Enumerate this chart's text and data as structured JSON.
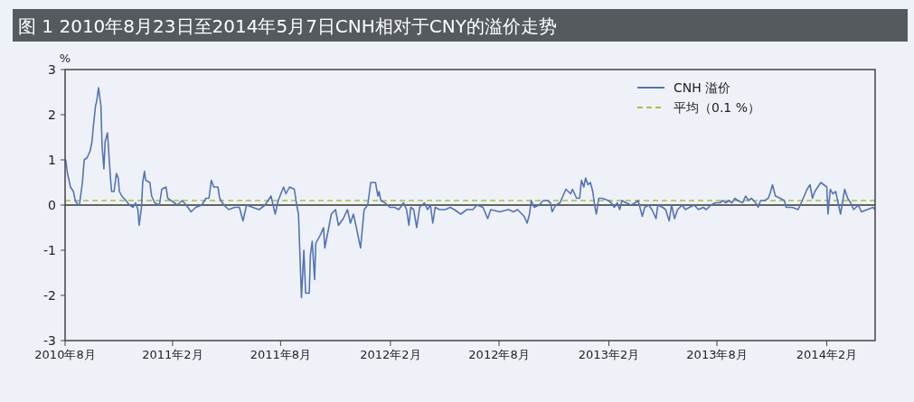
{
  "chart_data": {
    "type": "line",
    "title": "图 1 2010年8月23日至2014年5月7日CNH相对于CNY的溢价走势",
    "ylabel": "%",
    "xlim": [
      "2010-08-05",
      "2014-04-23"
    ],
    "xticks": [
      {
        "value": "2010-08-05",
        "label": "2010年8月"
      },
      {
        "value": "2011-02-01",
        "label": "2011年2月"
      },
      {
        "value": "2011-08-01",
        "label": "2011年8月"
      },
      {
        "value": "2012-02-01",
        "label": "2012年2月"
      },
      {
        "value": "2012-08-01",
        "label": "2012年8月"
      },
      {
        "value": "2013-02-01",
        "label": "2013年2月"
      },
      {
        "value": "2013-08-01",
        "label": "2013年8月"
      },
      {
        "value": "2014-02-01",
        "label": "2014年2月"
      }
    ],
    "ylim": [
      -3,
      3
    ],
    "yticks": [
      -3,
      -2,
      -1,
      0,
      1,
      2,
      3
    ],
    "grid": false,
    "legend": "top right",
    "line_style": "solid",
    "marker": "none",
    "ref_lines": [
      {
        "axis": "y",
        "value": 0.1,
        "label": "平均（0.1 %）",
        "color": "#a8c040",
        "line_style": "dashed"
      },
      {
        "axis": "y",
        "value": 0,
        "color": "#333333",
        "line_style": "solid"
      }
    ],
    "series": [
      {
        "name": "CNH 溢价",
        "color": "#5573b5",
        "x": [
          "2010-08-06",
          "2010-08-09",
          "2010-08-14",
          "2010-08-19",
          "2010-08-22",
          "2010-08-27",
          "2010-08-29",
          "2010-09-03",
          "2010-09-06",
          "2010-09-11",
          "2010-09-16",
          "2010-09-19",
          "2010-09-21",
          "2010-09-25",
          "2010-09-27",
          "2010-09-30",
          "2010-10-04",
          "2010-10-06",
          "2010-10-09",
          "2010-10-11",
          "2010-10-15",
          "2010-10-17",
          "2010-10-20",
          "2010-10-22",
          "2010-10-26",
          "2010-10-30",
          "2010-11-02",
          "2010-11-04",
          "2010-11-08",
          "2010-11-15",
          "2010-11-21",
          "2010-11-27",
          "2010-12-01",
          "2010-12-05",
          "2010-12-07",
          "2010-12-11",
          "2010-12-13",
          "2010-12-16",
          "2010-12-18",
          "2010-12-25",
          "2010-12-28",
          "2011-01-02",
          "2011-01-10",
          "2011-01-14",
          "2011-01-21",
          "2011-01-24",
          "2011-02-04",
          "2011-02-09",
          "2011-02-17",
          "2011-02-24",
          "2011-03-04",
          "2011-03-12",
          "2011-03-22",
          "2011-03-29",
          "2011-04-03",
          "2011-04-07",
          "2011-04-11",
          "2011-04-18",
          "2011-04-21",
          "2011-04-28",
          "2011-05-06",
          "2011-05-16",
          "2011-05-24",
          "2011-05-30",
          "2011-06-05",
          "2011-06-15",
          "2011-06-26",
          "2011-07-06",
          "2011-07-16",
          "2011-07-23",
          "2011-07-28",
          "2011-08-06",
          "2011-08-10",
          "2011-08-16",
          "2011-08-24",
          "2011-08-28",
          "2011-08-31",
          "2011-09-05",
          "2011-09-09",
          "2011-09-12",
          "2011-09-18",
          "2011-09-20",
          "2011-09-23",
          "2011-09-27",
          "2011-09-29",
          "2011-10-07",
          "2011-10-12",
          "2011-10-14",
          "2011-10-20",
          "2011-10-25",
          "2011-11-01",
          "2011-11-06",
          "2011-11-14",
          "2011-11-21",
          "2011-11-26",
          "2011-12-01",
          "2011-12-06",
          "2011-12-13",
          "2011-12-19",
          "2011-12-25",
          "2011-12-30",
          "2012-01-07",
          "2012-01-11",
          "2012-01-13",
          "2012-01-16",
          "2012-01-23",
          "2012-01-31",
          "2012-02-08",
          "2012-02-15",
          "2012-02-23",
          "2012-02-28",
          "2012-03-03",
          "2012-03-06",
          "2012-03-11",
          "2012-03-16",
          "2012-03-21",
          "2012-03-29",
          "2012-04-03",
          "2012-04-08",
          "2012-04-12",
          "2012-04-16",
          "2012-04-23",
          "2012-05-03",
          "2012-05-11",
          "2012-05-18",
          "2012-05-29",
          "2012-06-08",
          "2012-06-18",
          "2012-06-25",
          "2012-07-05",
          "2012-07-13",
          "2012-07-18",
          "2012-08-02",
          "2012-08-17",
          "2012-08-25",
          "2012-09-01",
          "2012-09-12",
          "2012-09-17",
          "2012-09-21",
          "2012-09-24",
          "2012-09-29",
          "2012-10-07",
          "2012-10-14",
          "2012-10-21",
          "2012-10-26",
          "2012-10-29",
          "2012-11-04",
          "2012-11-11",
          "2012-11-16",
          "2012-11-21",
          "2012-11-25",
          "2012-11-29",
          "2012-12-02",
          "2012-12-09",
          "2012-12-14",
          "2012-12-17",
          "2012-12-21",
          "2012-12-24",
          "2012-12-28",
          "2013-01-01",
          "2013-01-05",
          "2013-01-08",
          "2013-01-11",
          "2013-01-15",
          "2013-01-21",
          "2013-01-31",
          "2013-02-05",
          "2013-02-10",
          "2013-02-15",
          "2013-02-19",
          "2013-02-23",
          "2013-03-02",
          "2013-03-10",
          "2013-03-17",
          "2013-03-22",
          "2013-03-29",
          "2013-04-02",
          "2013-04-09",
          "2013-04-14",
          "2013-04-21",
          "2013-04-24",
          "2013-05-02",
          "2013-05-07",
          "2013-05-13",
          "2013-05-17",
          "2013-05-22",
          "2013-05-27",
          "2013-06-04",
          "2013-06-09",
          "2013-06-16",
          "2013-06-24",
          "2013-07-01",
          "2013-07-09",
          "2013-07-14",
          "2013-07-22",
          "2013-07-29",
          "2013-08-06",
          "2013-08-11",
          "2013-08-16",
          "2013-08-21",
          "2013-08-26",
          "2013-08-31",
          "2013-09-05",
          "2013-09-13",
          "2013-09-18",
          "2013-09-23",
          "2013-09-28",
          "2013-10-05",
          "2013-10-09",
          "2013-10-13",
          "2013-10-20",
          "2013-10-26",
          "2013-10-30",
          "2013-11-02",
          "2013-11-07",
          "2013-11-15",
          "2013-11-22",
          "2013-11-25",
          "2013-12-05",
          "2013-12-15",
          "2013-12-22",
          "2013-12-30",
          "2014-01-04",
          "2014-01-08",
          "2014-01-12",
          "2014-01-17",
          "2014-01-22",
          "2014-01-27",
          "2014-02-01",
          "2014-02-03",
          "2014-02-07",
          "2014-02-11",
          "2014-02-16",
          "2014-02-20",
          "2014-02-24",
          "2014-03-03",
          "2014-03-08",
          "2014-03-13",
          "2014-03-18",
          "2014-03-26",
          "2014-03-31",
          "2014-04-10",
          "2014-04-20",
          "2014-04-22"
        ],
        "values": [
          1.0,
          0.7,
          0.4,
          0.3,
          0.1,
          0.0,
          0.0,
          0.5,
          1.0,
          1.05,
          1.2,
          1.4,
          1.7,
          2.2,
          2.3,
          2.6,
          2.2,
          1.3,
          0.8,
          1.4,
          1.6,
          1.2,
          0.6,
          0.3,
          0.3,
          0.7,
          0.6,
          0.3,
          0.2,
          0.1,
          0.0,
          -0.05,
          0.05,
          -0.1,
          -0.45,
          -0.05,
          0.5,
          0.75,
          0.55,
          0.5,
          0.2,
          0.05,
          0.0,
          0.35,
          0.4,
          0.15,
          0.05,
          0.0,
          0.1,
          0.0,
          -0.15,
          -0.05,
          0.0,
          0.15,
          0.15,
          0.55,
          0.4,
          0.4,
          0.15,
          0.0,
          -0.1,
          -0.05,
          -0.05,
          -0.35,
          0.0,
          -0.05,
          -0.1,
          0.0,
          0.2,
          -0.2,
          0.1,
          0.4,
          0.25,
          0.4,
          0.35,
          0.0,
          -0.2,
          -2.05,
          -1.0,
          -1.95,
          -1.95,
          -1.1,
          -0.8,
          -1.65,
          -0.85,
          -0.65,
          -0.5,
          -0.95,
          -0.55,
          -0.2,
          -0.1,
          -0.45,
          -0.3,
          -0.1,
          -0.4,
          -0.2,
          -0.5,
          -0.95,
          -0.1,
          0.0,
          0.5,
          0.5,
          0.2,
          0.3,
          0.1,
          0.05,
          -0.05,
          -0.05,
          -0.1,
          0.05,
          -0.1,
          -0.45,
          -0.05,
          -0.1,
          -0.5,
          -0.05,
          0.05,
          -0.1,
          0.0,
          -0.4,
          -0.05,
          -0.1,
          -0.1,
          -0.05,
          -0.1,
          -0.2,
          -0.1,
          -0.1,
          0.0,
          -0.05,
          -0.3,
          -0.1,
          -0.15,
          -0.1,
          -0.15,
          -0.1,
          -0.25,
          -0.4,
          -0.2,
          0.1,
          -0.05,
          0.0,
          0.1,
          0.1,
          0.05,
          -0.15,
          0.0,
          0.05,
          0.2,
          0.35,
          0.3,
          0.25,
          0.35,
          0.15,
          0.15,
          0.55,
          0.4,
          0.6,
          0.45,
          0.5,
          0.3,
          0.0,
          -0.2,
          0.15,
          0.15,
          0.1,
          0.05,
          -0.05,
          0.05,
          -0.1,
          0.1,
          0.05,
          0.0,
          0.05,
          0.1,
          -0.25,
          -0.05,
          0.0,
          -0.1,
          -0.3,
          0.0,
          -0.05,
          -0.1,
          -0.35,
          0.0,
          -0.3,
          -0.1,
          0.0,
          -0.1,
          -0.05,
          0.0,
          -0.1,
          -0.05,
          -0.1,
          0.0,
          0.05,
          0.05,
          0.1,
          0.05,
          0.1,
          0.05,
          0.15,
          0.1,
          0.05,
          0.2,
          0.1,
          0.15,
          0.05,
          -0.05,
          0.1,
          0.1,
          0.15,
          0.3,
          0.45,
          0.2,
          0.15,
          0.1,
          -0.05,
          -0.05,
          -0.1,
          0.1,
          0.35,
          0.45,
          0.15,
          0.3,
          0.4,
          0.5,
          0.45,
          0.4,
          -0.2,
          0.35,
          0.25,
          0.3,
          0.05,
          -0.2,
          0.35,
          0.15,
          0.05,
          -0.1,
          0.0,
          -0.15,
          -0.1,
          -0.05,
          -0.1
        ]
      }
    ]
  }
}
